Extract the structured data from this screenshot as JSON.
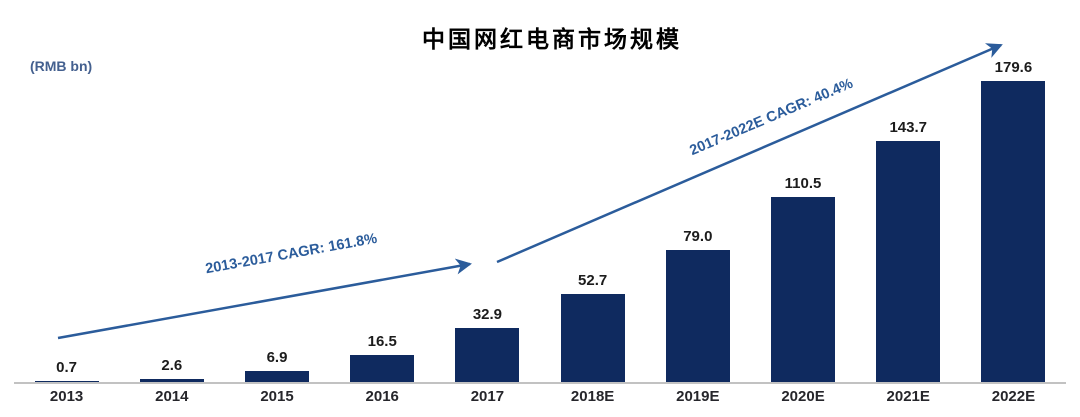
{
  "title": "中国网红电商市场规模",
  "unit_label": "(RMB bn)",
  "colors": {
    "bar": "#0F2A5F",
    "arrow": "#2B5C9B",
    "unit_label": "#44608F",
    "value_label": "#1C1C1C",
    "axis_label": "#26262B",
    "baseline": "#C2C2C2"
  },
  "annotations": [
    {
      "label": "2013-2017 CAGR: 161.8%"
    },
    {
      "label": "2017-2022E CAGR: 40.4%"
    }
  ],
  "chart_data": {
    "type": "bar",
    "title": "中国网红电商市场规模",
    "unit": "RMB bn",
    "categories": [
      "2013",
      "2014",
      "2015",
      "2016",
      "2017",
      "2018E",
      "2019E",
      "2020E",
      "2021E",
      "2022E"
    ],
    "values": [
      0.7,
      2.6,
      6.9,
      16.5,
      32.9,
      52.7,
      79.0,
      110.5,
      143.7,
      179.6
    ],
    "value_labels": [
      "0.7",
      "2.6",
      "6.9",
      "16.5",
      "32.9",
      "52.7",
      "79.0",
      "110.5",
      "143.7",
      "179.6"
    ],
    "ylim": [
      0,
      190
    ],
    "grid": false,
    "legend": "none",
    "annotations": [
      "2013-2017 CAGR: 161.8%",
      "2017-2022E CAGR: 40.4%"
    ]
  }
}
